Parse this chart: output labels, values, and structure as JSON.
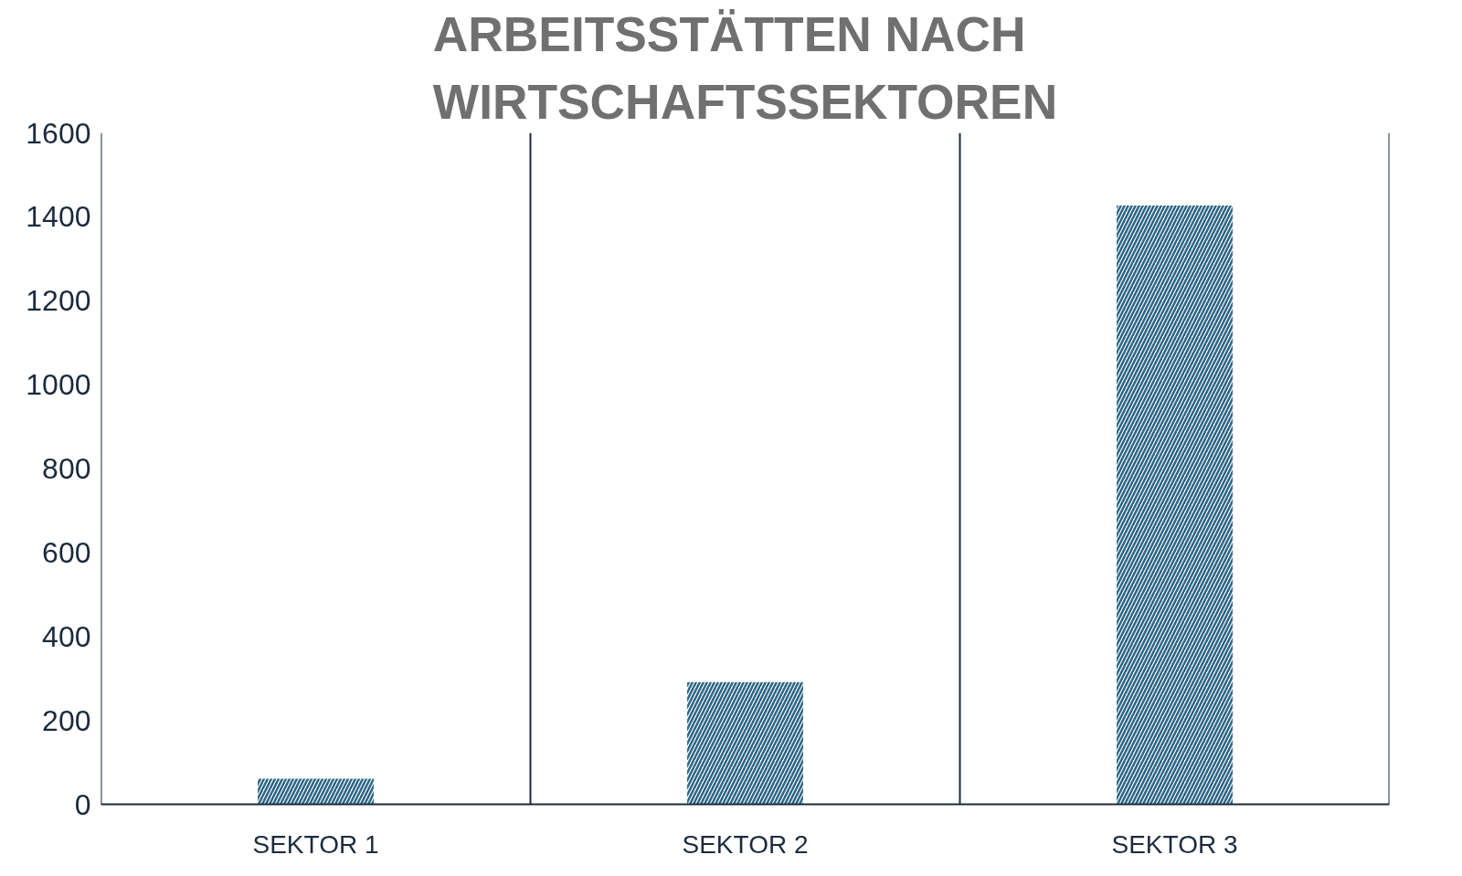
{
  "chart_data": {
    "type": "bar",
    "title": "ARBEITSSTÄTTEN NACH WIRTSCHAFTSSEKTOREN",
    "categories": [
      "SEKTOR 1",
      "SEKTOR 2",
      "SEKTOR 3"
    ],
    "values": [
      61,
      291,
      1427
    ],
    "color": "#2b6584",
    "ylim": [
      0,
      1600
    ],
    "yticks": [
      0,
      200,
      400,
      600,
      800,
      1000,
      1200,
      1400,
      1600
    ],
    "grid": "x"
  }
}
